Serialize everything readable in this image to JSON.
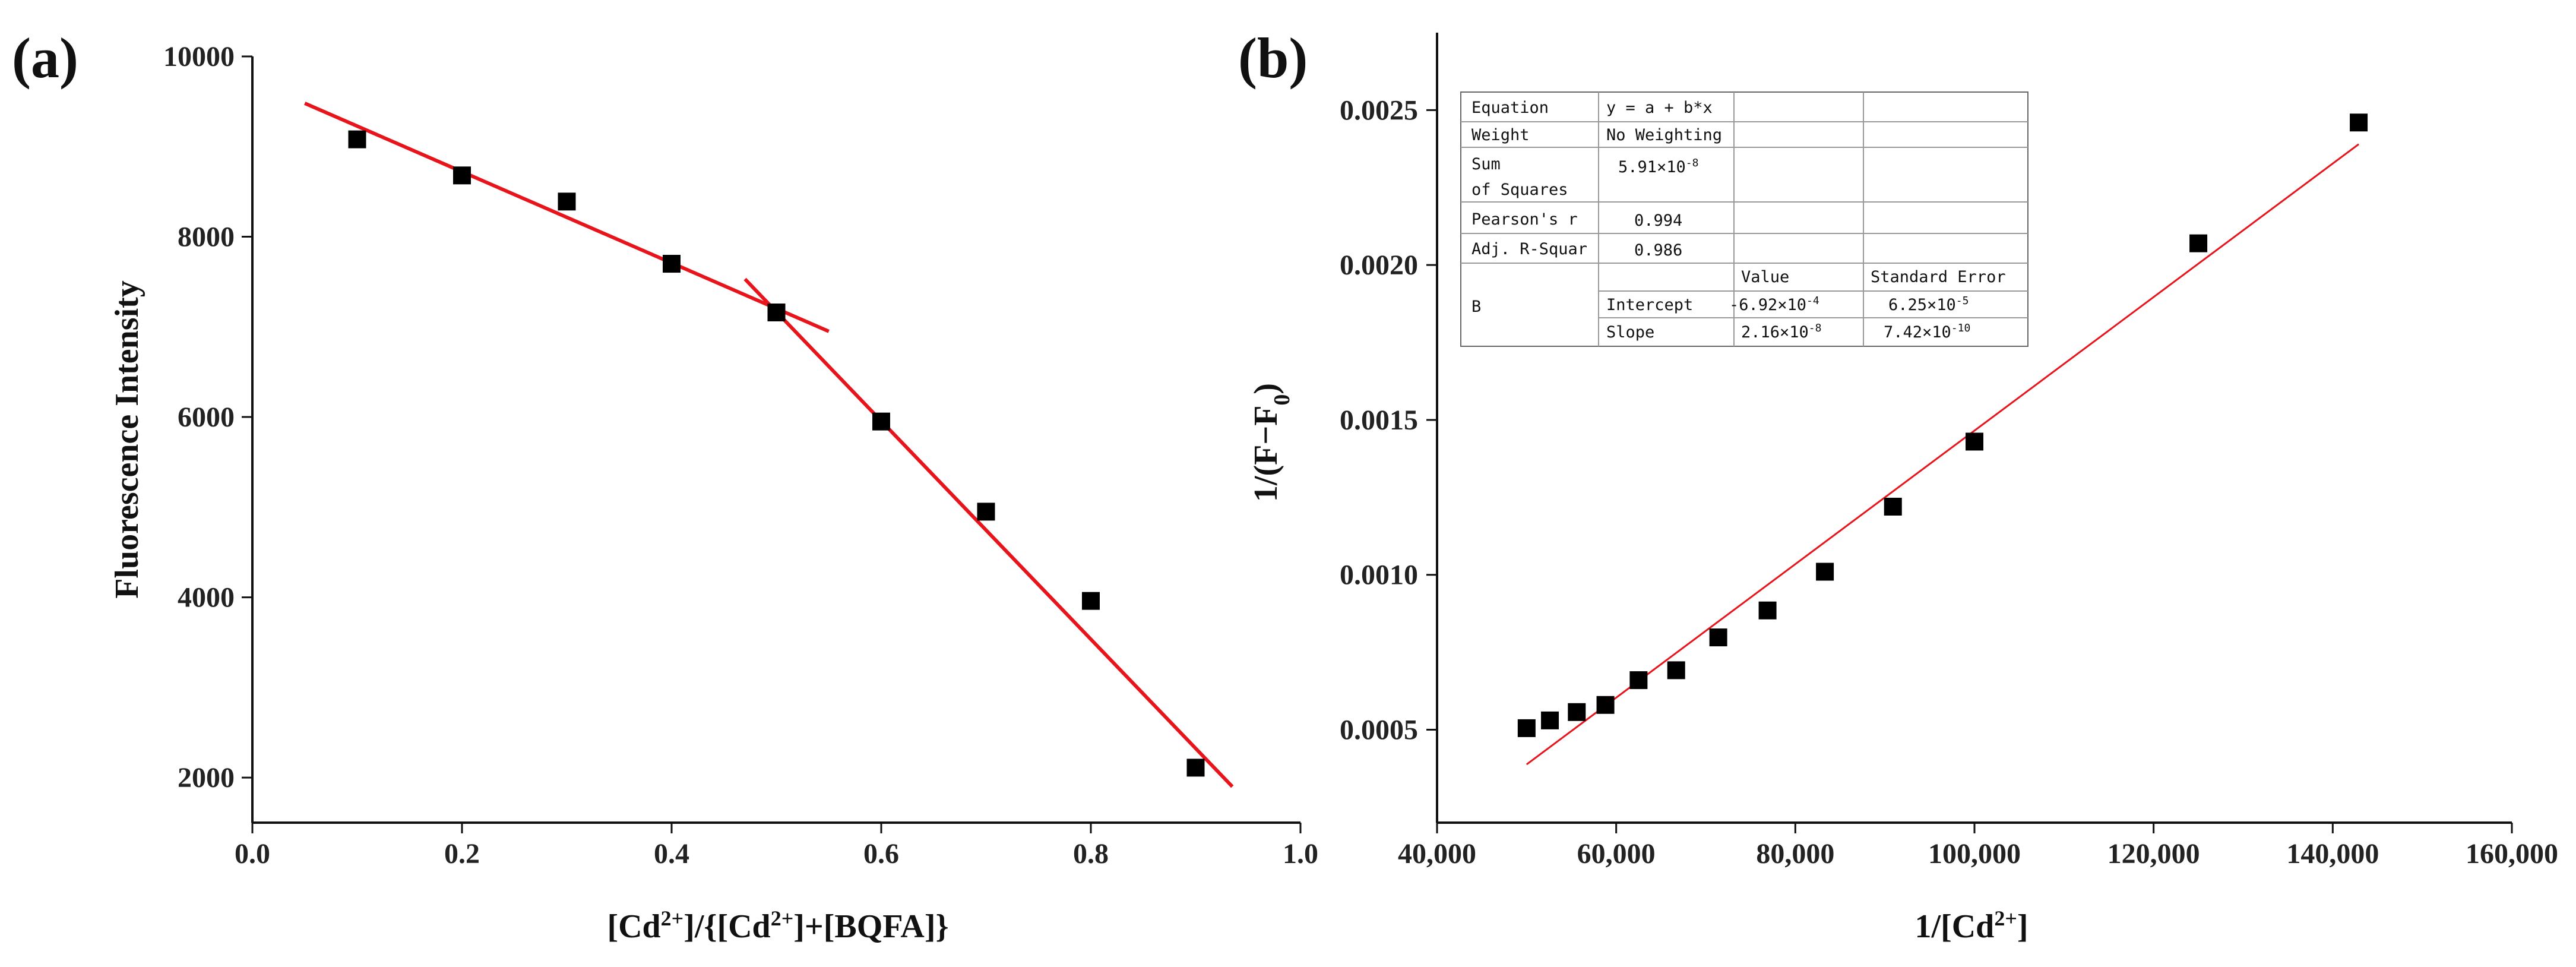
{
  "chart_data": [
    {
      "panel": "(a)",
      "type": "scatter",
      "xlabel": "[Cd2+]/{[Cd2+]+[BQFA]}",
      "ylabel": "Fluorescence Intensity",
      "xlim": [
        0.0,
        1.0
      ],
      "ylim": [
        1500,
        10000
      ],
      "xticks": [
        "0.0",
        "0.2",
        "0.4",
        "0.6",
        "0.8",
        "1.0"
      ],
      "yticks": [
        "2000",
        "4000",
        "6000",
        "8000",
        "10000"
      ],
      "points": {
        "x": [
          0.1,
          0.2,
          0.3,
          0.4,
          0.5,
          0.6,
          0.7,
          0.8,
          0.9
        ],
        "y": [
          9080,
          8680,
          8390,
          7700,
          7160,
          5950,
          4950,
          3960,
          2110
        ]
      },
      "fit_lines": [
        {
          "name": "fit-1",
          "x": [
            0.05,
            0.55
          ],
          "y": [
            9480,
            6950
          ],
          "color": "#e8141b"
        },
        {
          "name": "fit-2",
          "x": [
            0.47,
            0.935
          ],
          "y": [
            7530,
            1900
          ],
          "color": "#e8141b"
        }
      ],
      "marker_color": "#000000"
    },
    {
      "panel": "(b)",
      "type": "scatter",
      "xlabel": "1/[Cd2+]",
      "ylabel": "1/(F-F0)",
      "xlim": [
        40000,
        160000
      ],
      "ylim": [
        0.0002,
        0.00275
      ],
      "xticks": [
        "40,000",
        "60,000",
        "80,000",
        "100,000",
        "120,000",
        "140,000",
        "160,000"
      ],
      "yticks": [
        "0.0005",
        "0.0010",
        "0.0015",
        "0.0020",
        "0.0025"
      ],
      "points": {
        "x": [
          50000,
          52600,
          55600,
          58800,
          62500,
          66700,
          71400,
          76900,
          83300,
          90900,
          100000,
          125000,
          142900
        ],
        "y": [
          0.000505,
          0.00053,
          0.000557,
          0.00058,
          0.00066,
          0.000692,
          0.000798,
          0.000885,
          0.00101,
          0.00122,
          0.00143,
          0.00207,
          0.00246
        ]
      },
      "fit_lines": [
        {
          "name": "linear-fit",
          "x": [
            50000,
            142900
          ],
          "y": [
            0.000388,
            0.00239
          ],
          "color": "#e8141b"
        }
      ],
      "marker_color": "#000000",
      "stats_table": {
        "equation_label": "Equation",
        "equation_value": "y = a + b*x",
        "weight_label": "Weight",
        "weight_value": "No Weighting",
        "sum_label_line1": "Sum",
        "sum_label_line2": "of Squares",
        "sum_value": "5.91×10",
        "sum_exp": "-8",
        "pearson_label": "Pearson's r",
        "pearson_value": "0.994",
        "adjr_label": "Adj. R-Squar",
        "adjr_value": "0.986",
        "col_value": "Value",
        "col_stderr": "Standard Error",
        "row_group": "B",
        "intercept_label": "Intercept",
        "intercept_value": "-6.92×10",
        "intercept_exp": "-4",
        "intercept_err": "6.25×10",
        "intercept_err_exp": "-5",
        "slope_label": "Slope",
        "slope_value": "2.16×10",
        "slope_exp": "-8",
        "slope_err": "7.42×10",
        "slope_err_exp": "-10"
      }
    }
  ]
}
